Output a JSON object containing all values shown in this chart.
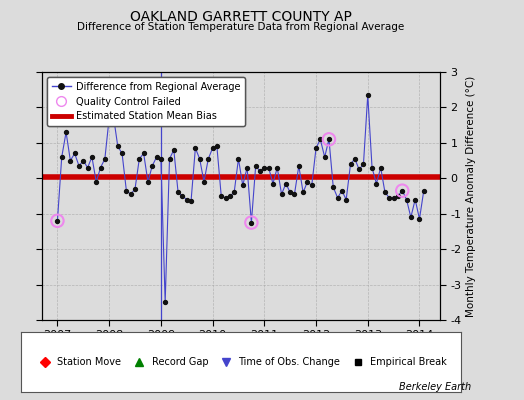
{
  "title": "OAKLAND GARRETT COUNTY AP",
  "subtitle": "Difference of Station Temperature Data from Regional Average",
  "ylabel": "Monthly Temperature Anomaly Difference (°C)",
  "xlabel_bottom": "Berkeley Earth",
  "xlim": [
    2006.7,
    2014.4
  ],
  "ylim": [
    -4,
    3
  ],
  "yticks": [
    -4,
    -3,
    -2,
    -1,
    0,
    1,
    2,
    3
  ],
  "xticks": [
    2007,
    2008,
    2009,
    2010,
    2011,
    2012,
    2013,
    2014
  ],
  "bias_value": 0.05,
  "vertical_line_x": 2009.0,
  "background_color": "#dcdcdc",
  "plot_bg_color": "#dcdcdc",
  "line_color": "#4444cc",
  "dot_color": "#111111",
  "bias_color": "#cc0000",
  "qc_fail_color": "#ee88ee",
  "time_series": [
    [
      2007.0,
      -1.2
    ],
    [
      2007.083,
      0.6
    ],
    [
      2007.167,
      1.3
    ],
    [
      2007.25,
      0.5
    ],
    [
      2007.333,
      0.7
    ],
    [
      2007.417,
      0.35
    ],
    [
      2007.5,
      0.5
    ],
    [
      2007.583,
      0.3
    ],
    [
      2007.667,
      0.6
    ],
    [
      2007.75,
      -0.1
    ],
    [
      2007.833,
      0.3
    ],
    [
      2007.917,
      0.55
    ],
    [
      2008.0,
      1.7
    ],
    [
      2008.083,
      1.75
    ],
    [
      2008.167,
      0.9
    ],
    [
      2008.25,
      0.7
    ],
    [
      2008.333,
      -0.35
    ],
    [
      2008.417,
      -0.45
    ],
    [
      2008.5,
      -0.3
    ],
    [
      2008.583,
      0.55
    ],
    [
      2008.667,
      0.7
    ],
    [
      2008.75,
      -0.1
    ],
    [
      2008.833,
      0.35
    ],
    [
      2008.917,
      0.6
    ],
    [
      2009.0,
      0.55
    ],
    [
      2009.083,
      -3.5
    ],
    [
      2009.167,
      0.55
    ],
    [
      2009.25,
      0.8
    ],
    [
      2009.333,
      -0.4
    ],
    [
      2009.417,
      -0.5
    ],
    [
      2009.5,
      -0.6
    ],
    [
      2009.583,
      -0.65
    ],
    [
      2009.667,
      0.85
    ],
    [
      2009.75,
      0.55
    ],
    [
      2009.833,
      -0.1
    ],
    [
      2009.917,
      0.55
    ],
    [
      2010.0,
      0.85
    ],
    [
      2010.083,
      0.9
    ],
    [
      2010.167,
      -0.5
    ],
    [
      2010.25,
      -0.55
    ],
    [
      2010.333,
      -0.5
    ],
    [
      2010.417,
      -0.4
    ],
    [
      2010.5,
      0.55
    ],
    [
      2010.583,
      -0.2
    ],
    [
      2010.667,
      0.3
    ],
    [
      2010.75,
      -1.25
    ],
    [
      2010.833,
      0.35
    ],
    [
      2010.917,
      0.2
    ],
    [
      2011.0,
      0.3
    ],
    [
      2011.083,
      0.3
    ],
    [
      2011.167,
      -0.15
    ],
    [
      2011.25,
      0.3
    ],
    [
      2011.333,
      -0.45
    ],
    [
      2011.417,
      -0.15
    ],
    [
      2011.5,
      -0.4
    ],
    [
      2011.583,
      -0.45
    ],
    [
      2011.667,
      0.35
    ],
    [
      2011.75,
      -0.4
    ],
    [
      2011.833,
      -0.1
    ],
    [
      2011.917,
      -0.2
    ],
    [
      2012.0,
      0.85
    ],
    [
      2012.083,
      1.1
    ],
    [
      2012.167,
      0.6
    ],
    [
      2012.25,
      1.1
    ],
    [
      2012.333,
      -0.25
    ],
    [
      2012.417,
      -0.55
    ],
    [
      2012.5,
      -0.35
    ],
    [
      2012.583,
      -0.6
    ],
    [
      2012.667,
      0.4
    ],
    [
      2012.75,
      0.55
    ],
    [
      2012.833,
      0.25
    ],
    [
      2012.917,
      0.4
    ],
    [
      2013.0,
      2.35
    ],
    [
      2013.083,
      0.3
    ],
    [
      2013.167,
      -0.15
    ],
    [
      2013.25,
      0.3
    ],
    [
      2013.333,
      -0.4
    ],
    [
      2013.417,
      -0.55
    ],
    [
      2013.5,
      -0.55
    ],
    [
      2013.583,
      -0.5
    ],
    [
      2013.667,
      -0.35
    ],
    [
      2013.75,
      -0.6
    ],
    [
      2013.833,
      -1.1
    ],
    [
      2013.917,
      -0.6
    ],
    [
      2014.0,
      -1.15
    ],
    [
      2014.083,
      -0.35
    ]
  ],
  "qc_fail_points": [
    [
      2007.0,
      -1.2
    ],
    [
      2008.0,
      1.7
    ],
    [
      2010.75,
      -1.25
    ],
    [
      2012.25,
      1.1
    ],
    [
      2013.667,
      -0.35
    ]
  ]
}
